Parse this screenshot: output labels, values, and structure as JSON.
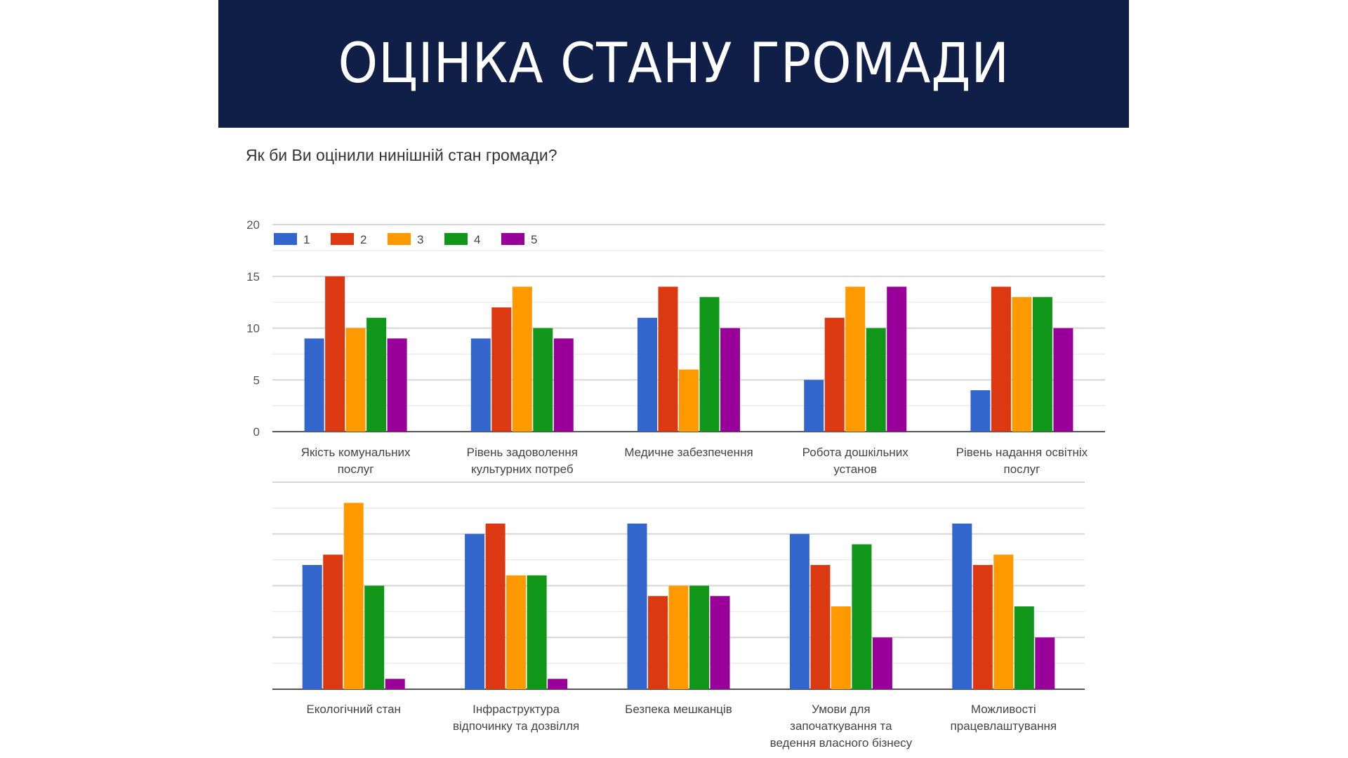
{
  "header": {
    "title": "ОЦІНКА СТАНУ ГРОМАДИ"
  },
  "question": "Як би Ви оцінили нинішній стан громади?",
  "colors": {
    "banner": "#0f1f47",
    "s1": "#3366cc",
    "s2": "#dc3912",
    "s3": "#ff9900",
    "s4": "#109618",
    "s5": "#990099"
  },
  "chart_data": [
    {
      "type": "bar",
      "title": "",
      "ylim": [
        0,
        20
      ],
      "yticks": [
        "0",
        "5",
        "10",
        "15",
        "20"
      ],
      "grid": true,
      "legend": "top-left",
      "categories": [
        [
          "Якість комунальних",
          "послуг"
        ],
        [
          "Рівень задоволення",
          "культурних потреб"
        ],
        [
          "Медичне забезпечення"
        ],
        [
          "Робота дошкільних",
          "установ"
        ],
        [
          "Рівень надання освітніх",
          "послуг"
        ]
      ],
      "series": [
        {
          "name": "1",
          "values": [
            9,
            9,
            11,
            5,
            4
          ]
        },
        {
          "name": "2",
          "values": [
            15,
            12,
            14,
            11,
            14
          ]
        },
        {
          "name": "3",
          "values": [
            10,
            14,
            6,
            14,
            13
          ]
        },
        {
          "name": "4",
          "values": [
            11,
            10,
            13,
            10,
            13
          ]
        },
        {
          "name": "5",
          "values": [
            9,
            9,
            10,
            14,
            10
          ]
        }
      ]
    },
    {
      "type": "bar",
      "title": "",
      "ylim": [
        0,
        20
      ],
      "grid": true,
      "categories": [
        [
          "Екологічний стан"
        ],
        [
          "Інфраструктура",
          "відпочинку та дозвілля"
        ],
        [
          "Безпека мешканців"
        ],
        [
          "Умови для",
          "започаткування та",
          "ведення власного бізнесу"
        ],
        [
          "Можливості",
          "працевлаштування"
        ]
      ],
      "series": [
        {
          "name": "1",
          "values": [
            12,
            15,
            16,
            15,
            16
          ]
        },
        {
          "name": "2",
          "values": [
            13,
            16,
            9,
            12,
            12
          ]
        },
        {
          "name": "3",
          "values": [
            18,
            11,
            10,
            8,
            13
          ]
        },
        {
          "name": "4",
          "values": [
            10,
            11,
            10,
            14,
            8
          ]
        },
        {
          "name": "5",
          "values": [
            1,
            1,
            9,
            5,
            5
          ]
        }
      ]
    }
  ]
}
